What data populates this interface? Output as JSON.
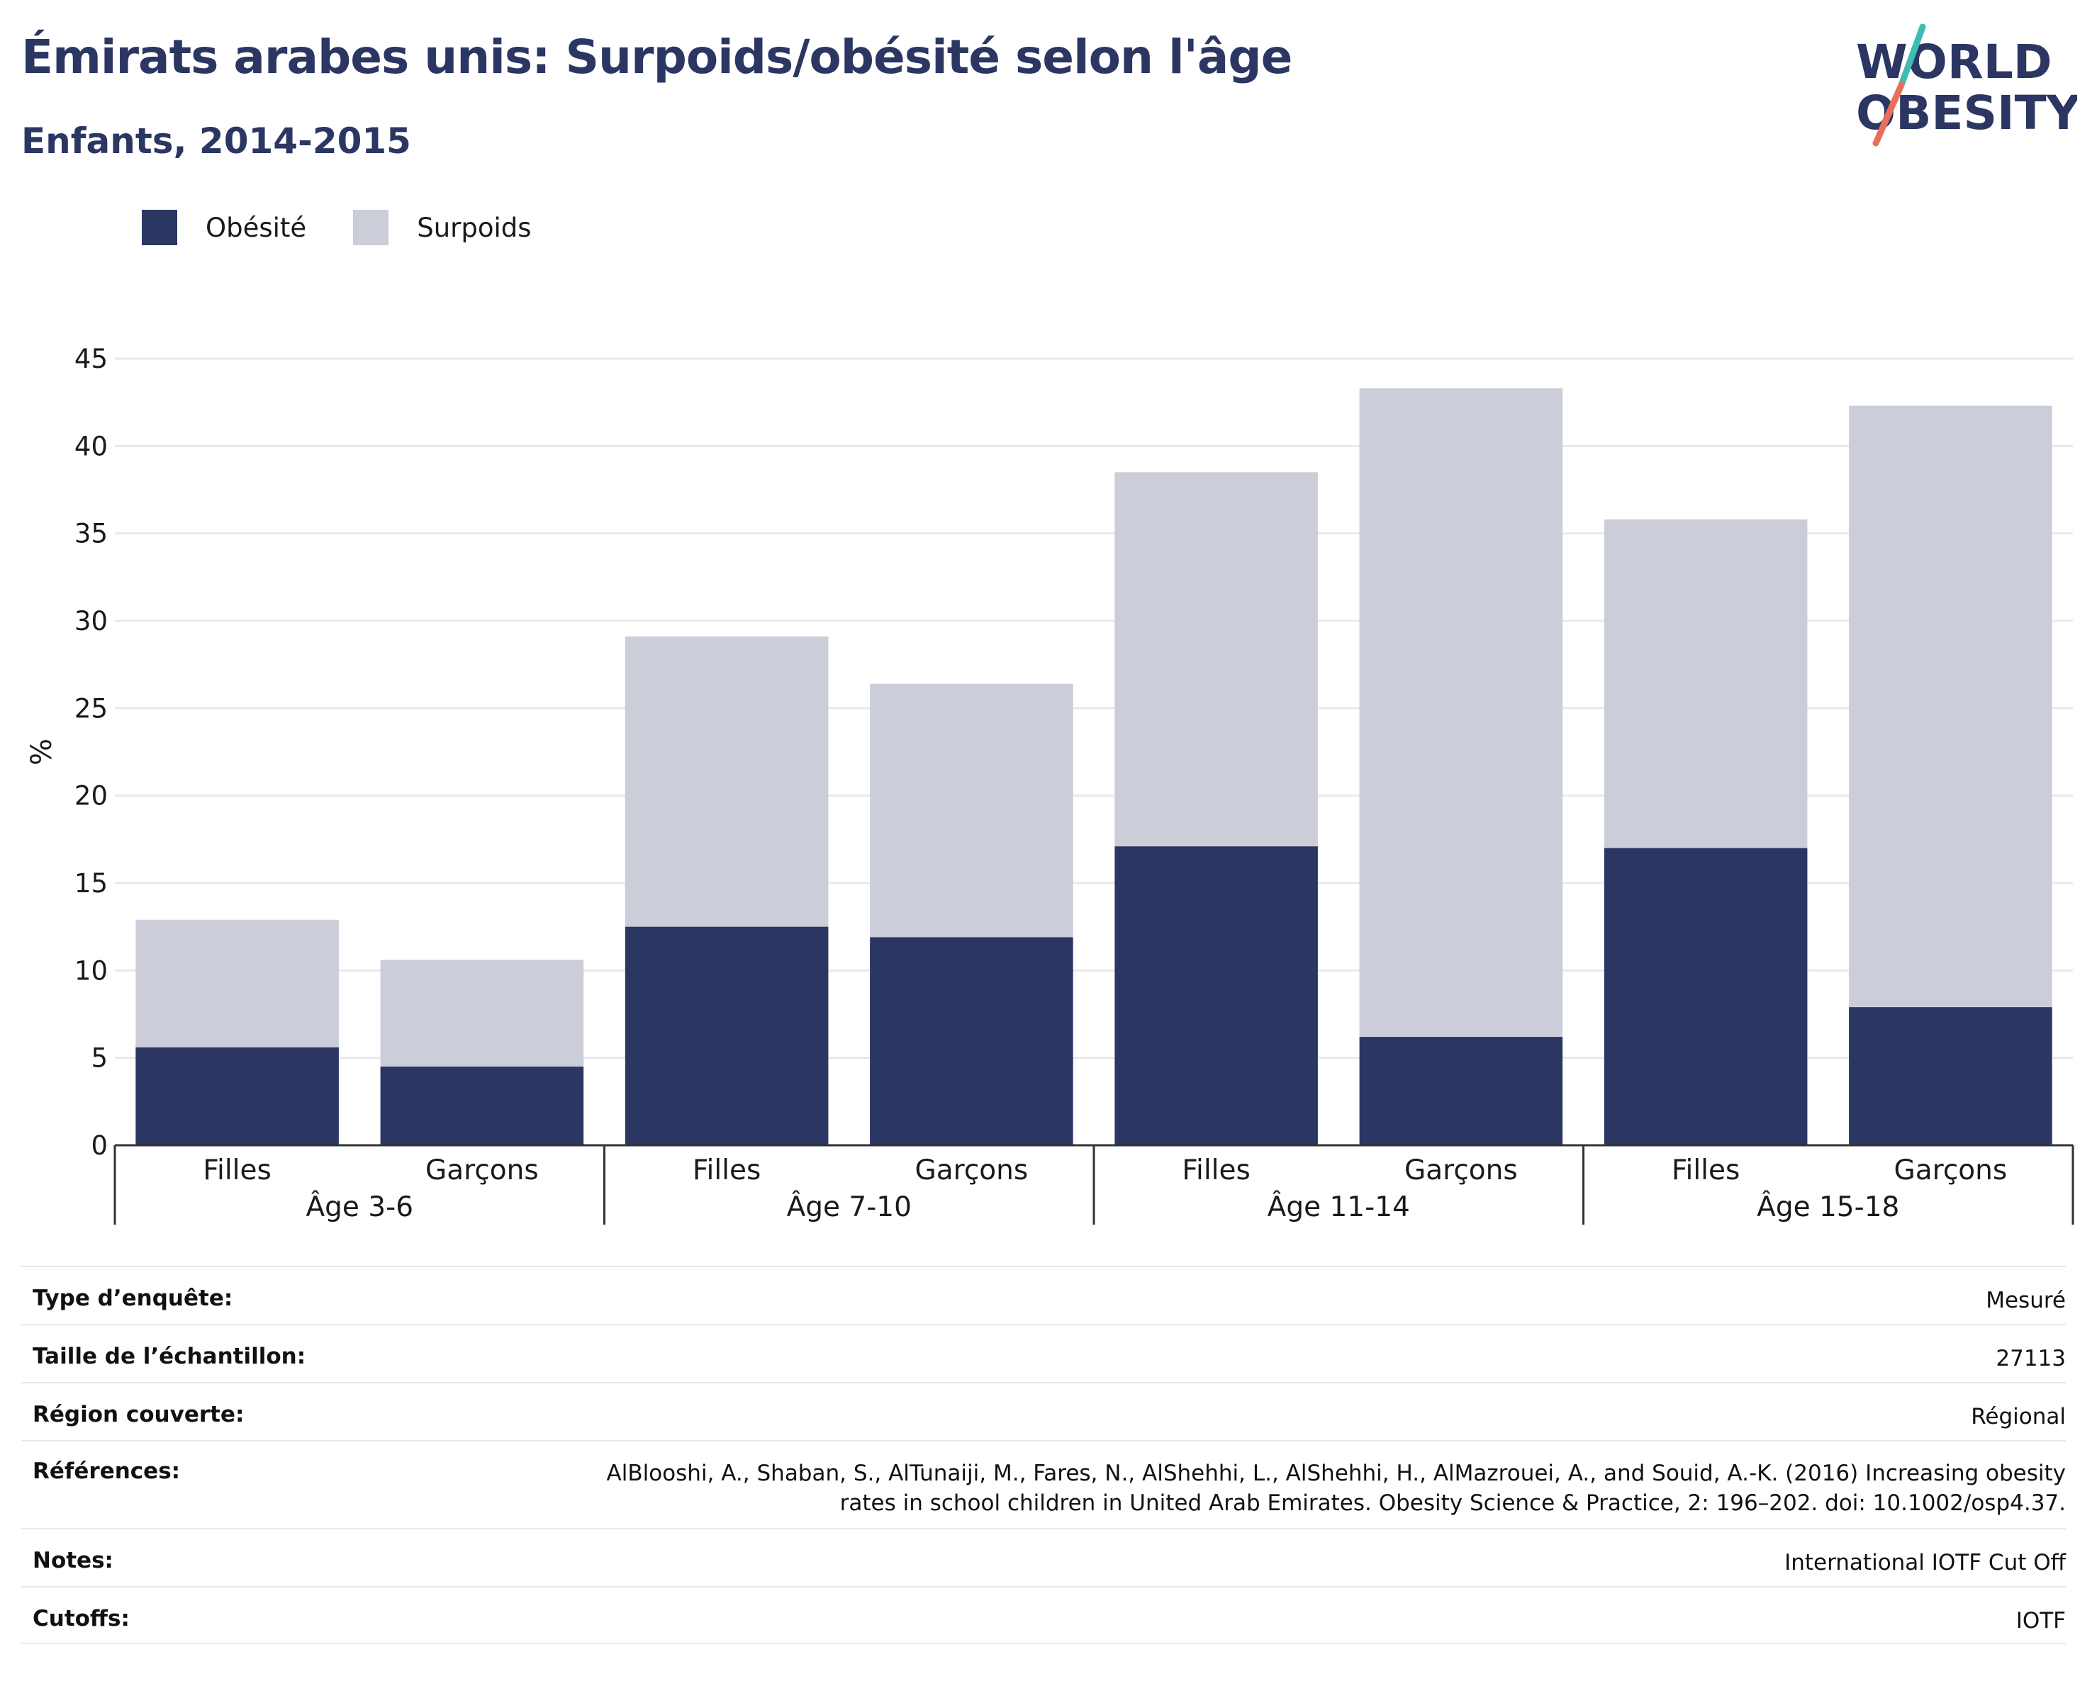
{
  "header": {
    "title": "Émirats arabes unis: Surpoids/obésité selon l'âge",
    "subtitle": "Enfants, 2014-2015"
  },
  "logo": {
    "line1": "WORLD",
    "line2": "OBESITY",
    "colors": {
      "text": "#2b3663",
      "slash_top": "#3dbdb5",
      "slash_bottom": "#e8705a"
    }
  },
  "colors": {
    "obesity": "#2b3663",
    "overweight": "#cbcdd8",
    "grid": "#e8e9ef",
    "axis": "#333333"
  },
  "chart_data": {
    "type": "bar",
    "stacked": true,
    "ylabel": "%",
    "ylim": [
      0,
      45
    ],
    "yticks": [
      0,
      5,
      10,
      15,
      20,
      25,
      30,
      35,
      40,
      45
    ],
    "grid": true,
    "legend_position": "top-left",
    "groups": [
      "Âge 3-6",
      "Âge 7-10",
      "Âge 11-14",
      "Âge 15-18"
    ],
    "categories": [
      "Filles",
      "Garçons",
      "Filles",
      "Garçons",
      "Filles",
      "Garçons",
      "Filles",
      "Garçons"
    ],
    "series": [
      {
        "name": "Obésité",
        "values": [
          5.6,
          4.5,
          12.5,
          11.9,
          17.1,
          6.2,
          17.0,
          7.9
        ]
      },
      {
        "name": "Surpoids",
        "values": [
          7.3,
          6.1,
          16.6,
          14.5,
          21.4,
          37.1,
          18.8,
          34.4
        ]
      }
    ],
    "totals": [
      12.9,
      10.6,
      29.1,
      26.4,
      38.5,
      43.3,
      35.8,
      42.3
    ]
  },
  "info": [
    {
      "key": "Type d’enquête:",
      "value": "Mesuré"
    },
    {
      "key": "Taille de l’échantillon:",
      "value": "27113"
    },
    {
      "key": "Région couverte:",
      "value": "Régional"
    },
    {
      "key": "Références:",
      "value": "AlBlooshi, A., Shaban, S., AlTunaiji, M., Fares, N., AlShehhi, L., AlShehhi, H., AlMazrouei, A., and Souid, A.-K. (2016) Increasing obesity",
      "value2": "rates in school children in United Arab Emirates. Obesity Science & Practice, 2: 196–202. doi: 10.1002/osp4.37."
    },
    {
      "key": "Notes:",
      "value": "International IOTF Cut Off"
    },
    {
      "key": "Cutoffs:",
      "value": "IOTF"
    }
  ]
}
